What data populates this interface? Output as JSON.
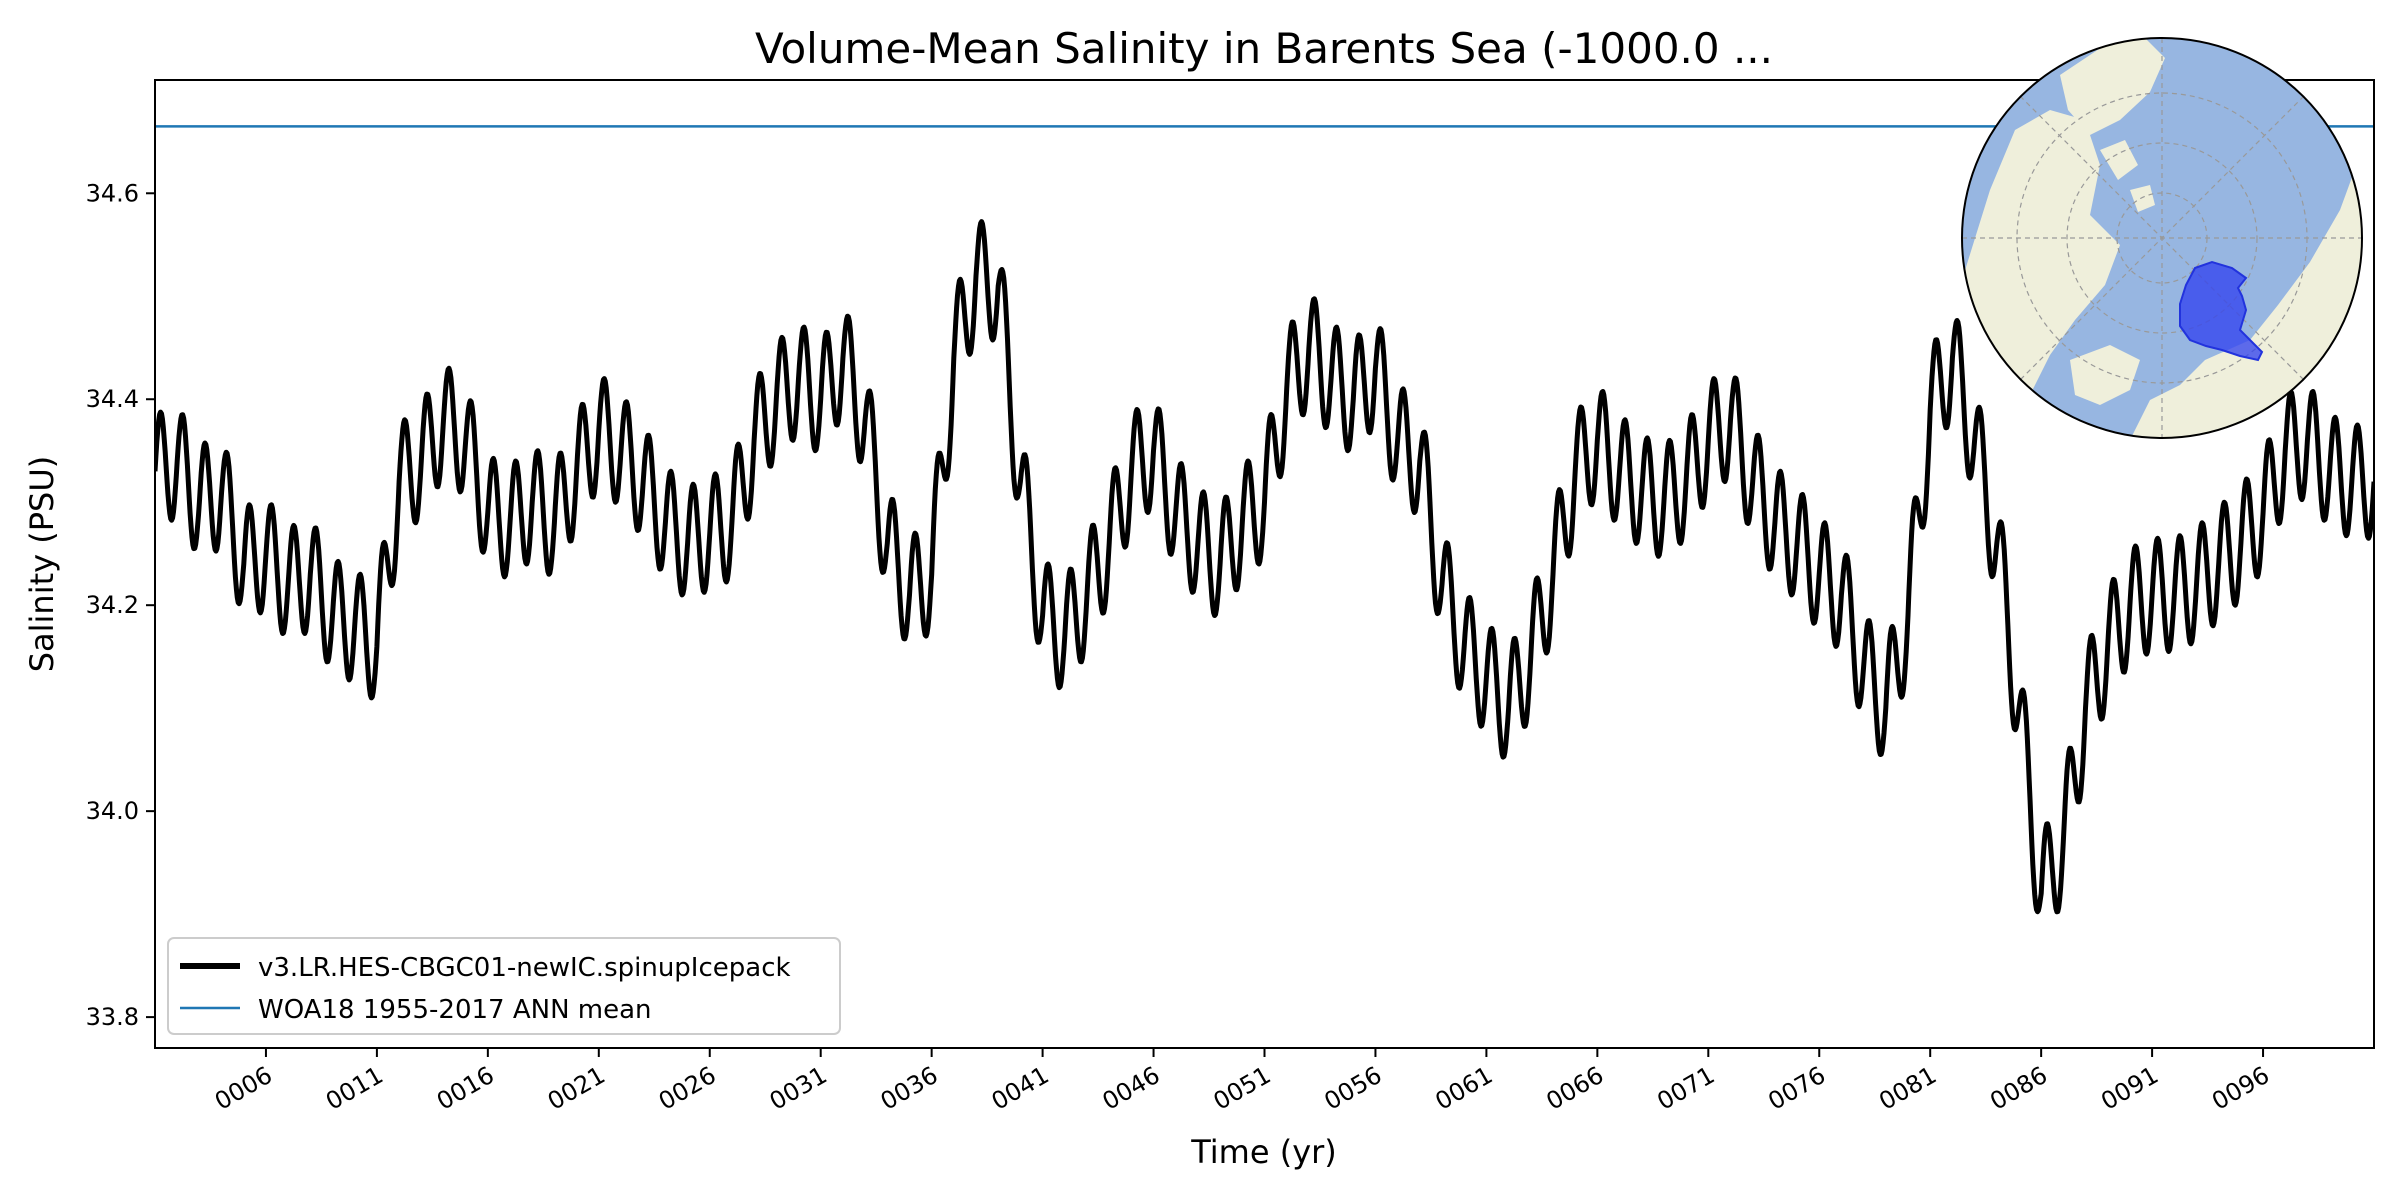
{
  "colors": {
    "model_line": "#000000",
    "obs_line": "#1f77b4",
    "ocean": "#97b6e1",
    "land": "#efefdb",
    "region": "#2233ee"
  },
  "chart_data": {
    "type": "line",
    "title": "Volume-Mean Salinity in Barents Sea (-1000.0 ...",
    "xlabel": "Time (yr)",
    "ylabel": "Salinity (PSU)",
    "xlim": [
      1,
      101
    ],
    "ylim": [
      33.77,
      34.71
    ],
    "grid": false,
    "legend_position": "lower-left",
    "x_ticks": [
      {
        "value": 6,
        "label": "0006"
      },
      {
        "value": 11,
        "label": "0011"
      },
      {
        "value": 16,
        "label": "0016"
      },
      {
        "value": 21,
        "label": "0021"
      },
      {
        "value": 26,
        "label": "0026"
      },
      {
        "value": 31,
        "label": "0031"
      },
      {
        "value": 36,
        "label": "0036"
      },
      {
        "value": 41,
        "label": "0041"
      },
      {
        "value": 46,
        "label": "0046"
      },
      {
        "value": 51,
        "label": "0051"
      },
      {
        "value": 56,
        "label": "0056"
      },
      {
        "value": 61,
        "label": "0061"
      },
      {
        "value": 66,
        "label": "0066"
      },
      {
        "value": 71,
        "label": "0071"
      },
      {
        "value": 76,
        "label": "0076"
      },
      {
        "value": 81,
        "label": "0081"
      },
      {
        "value": 86,
        "label": "0086"
      },
      {
        "value": 91,
        "label": "0091"
      },
      {
        "value": 96,
        "label": "0096"
      }
    ],
    "y_ticks": [
      {
        "value": 33.8,
        "label": "33.8"
      },
      {
        "value": 34.0,
        "label": "34.0"
      },
      {
        "value": 34.2,
        "label": "34.2"
      },
      {
        "value": 34.4,
        "label": "34.4"
      },
      {
        "value": 34.6,
        "label": "34.6"
      }
    ],
    "series": [
      {
        "name": "v3.LR.HES-CBGC01-newIC.spinupIcepack",
        "style": "thick",
        "seasonal_amplitude": 0.055,
        "x": [
          1,
          2,
          3,
          4,
          5,
          6,
          7,
          8,
          9,
          10,
          11,
          12,
          13,
          14,
          15,
          16,
          17,
          18,
          19,
          20,
          21,
          22,
          23,
          24,
          25,
          26,
          27,
          28,
          29,
          30,
          31,
          32,
          33,
          34,
          35,
          36,
          37,
          38,
          39,
          40,
          41,
          42,
          43,
          44,
          45,
          46,
          47,
          48,
          49,
          50,
          51,
          52,
          53,
          54,
          55,
          56,
          57,
          58,
          59,
          60,
          61,
          62,
          63,
          64,
          65,
          66,
          67,
          68,
          69,
          70,
          71,
          72,
          73,
          74,
          75,
          76,
          77,
          78,
          79,
          80,
          81,
          82,
          83,
          84,
          85,
          86,
          87,
          88,
          89,
          90,
          91,
          92,
          93,
          94,
          95,
          96,
          97,
          98,
          99,
          100,
          101
        ],
        "y": [
          34.33,
          34.34,
          34.3,
          34.31,
          34.24,
          34.25,
          34.22,
          34.23,
          34.19,
          34.18,
          34.16,
          34.32,
          34.34,
          34.38,
          34.36,
          34.29,
          34.28,
          34.3,
          34.28,
          34.33,
          34.37,
          34.35,
          34.32,
          34.28,
          34.26,
          34.27,
          34.28,
          34.36,
          34.4,
          34.42,
          34.4,
          34.44,
          34.38,
          34.26,
          34.21,
          34.23,
          34.44,
          34.52,
          34.51,
          34.32,
          34.19,
          34.17,
          34.21,
          34.26,
          34.33,
          34.35,
          34.29,
          34.26,
          34.24,
          34.28,
          34.3,
          34.41,
          34.45,
          34.42,
          34.4,
          34.43,
          34.36,
          34.34,
          34.22,
          34.16,
          34.13,
          34.1,
          34.15,
          34.23,
          34.33,
          34.36,
          34.33,
          34.31,
          34.3,
          34.32,
          34.36,
          34.38,
          34.32,
          34.28,
          34.26,
          34.23,
          34.21,
          34.14,
          34.1,
          34.19,
          34.39,
          34.44,
          34.36,
          34.26,
          34.1,
          33.92,
          33.97,
          34.1,
          34.16,
          34.2,
          34.21,
          34.21,
          34.22,
          34.24,
          34.26,
          34.29,
          34.35,
          34.36,
          34.33,
          34.32,
          34.32
        ]
      },
      {
        "name": "WOA18 1955-2017 ANN mean",
        "style": "thin",
        "x": [
          1,
          101
        ],
        "y": [
          34.665,
          34.665
        ]
      }
    ]
  }
}
